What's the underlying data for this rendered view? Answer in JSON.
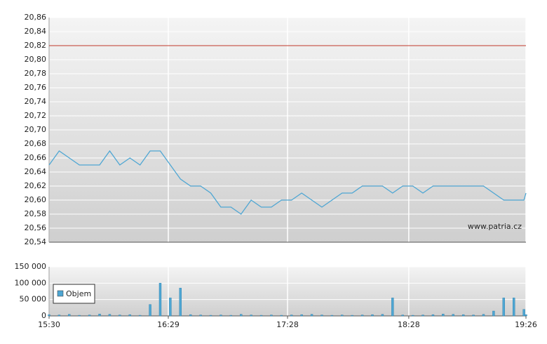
{
  "chart_data": [
    {
      "type": "line",
      "x": [
        "15:30",
        "15:35",
        "15:40",
        "15:45",
        "15:50",
        "15:55",
        "16:00",
        "16:05",
        "16:10",
        "16:15",
        "16:20",
        "16:25",
        "16:30",
        "16:35",
        "16:40",
        "16:45",
        "16:50",
        "16:55",
        "17:00",
        "17:05",
        "17:10",
        "17:15",
        "17:20",
        "17:25",
        "17:30",
        "17:35",
        "17:40",
        "17:45",
        "17:50",
        "17:55",
        "18:00",
        "18:05",
        "18:10",
        "18:15",
        "18:20",
        "18:25",
        "18:30",
        "18:35",
        "18:40",
        "18:45",
        "18:50",
        "18:55",
        "19:00",
        "19:05",
        "19:10",
        "19:15",
        "19:20",
        "19:25",
        "19:26"
      ],
      "values": [
        20.65,
        20.67,
        20.66,
        20.65,
        20.65,
        20.65,
        20.67,
        20.65,
        20.66,
        20.65,
        20.67,
        20.67,
        20.65,
        20.63,
        20.62,
        20.62,
        20.61,
        20.59,
        20.59,
        20.58,
        20.6,
        20.59,
        20.59,
        20.6,
        20.6,
        20.61,
        20.6,
        20.59,
        20.6,
        20.61,
        20.61,
        20.62,
        20.62,
        20.62,
        20.61,
        20.62,
        20.62,
        20.61,
        20.62,
        20.62,
        20.62,
        20.62,
        20.62,
        20.62,
        20.61,
        20.6,
        20.6,
        20.6,
        20.61
      ],
      "color": "#4ea6d3",
      "xlim": [
        "15:30",
        "19:26"
      ],
      "ylim": [
        20.54,
        20.86
      ],
      "yticks": [
        {
          "value": 20.54,
          "label": "20,54"
        },
        {
          "value": 20.56,
          "label": "20,56"
        },
        {
          "value": 20.58,
          "label": "20,58"
        },
        {
          "value": 20.6,
          "label": "20,60"
        },
        {
          "value": 20.62,
          "label": "20,62"
        },
        {
          "value": 20.64,
          "label": "20,64"
        },
        {
          "value": 20.66,
          "label": "20,66"
        },
        {
          "value": 20.68,
          "label": "20,68"
        },
        {
          "value": 20.7,
          "label": "20,70"
        },
        {
          "value": 20.72,
          "label": "20,72"
        },
        {
          "value": 20.74,
          "label": "20,74"
        },
        {
          "value": 20.76,
          "label": "20,76"
        },
        {
          "value": 20.78,
          "label": "20,78"
        },
        {
          "value": 20.8,
          "label": "20,80"
        },
        {
          "value": 20.82,
          "label": "20,82"
        },
        {
          "value": 20.84,
          "label": "20,84"
        },
        {
          "value": 20.86,
          "label": "20,86"
        }
      ],
      "reference_line": 20.82,
      "reference_color": "#c0392b",
      "annotation": "www.patria.cz",
      "grid": true
    },
    {
      "type": "bar",
      "x": [
        "15:30",
        "15:35",
        "15:40",
        "15:45",
        "15:50",
        "15:55",
        "16:00",
        "16:05",
        "16:10",
        "16:15",
        "16:20",
        "16:25",
        "16:30",
        "16:35",
        "16:40",
        "16:45",
        "16:50",
        "16:55",
        "17:00",
        "17:05",
        "17:10",
        "17:15",
        "17:20",
        "17:25",
        "17:30",
        "17:35",
        "17:40",
        "17:45",
        "17:50",
        "17:55",
        "18:00",
        "18:05",
        "18:10",
        "18:15",
        "18:20",
        "18:25",
        "18:30",
        "18:35",
        "18:40",
        "18:45",
        "18:50",
        "18:55",
        "19:00",
        "19:05",
        "19:10",
        "19:15",
        "19:20",
        "19:25",
        "19:26"
      ],
      "series": [
        {
          "name": "Objem",
          "color": "#4ea6d3",
          "values": [
            4000,
            3000,
            5000,
            2000,
            3000,
            6000,
            5000,
            3000,
            4000,
            2000,
            35000,
            100000,
            55000,
            85000,
            4000,
            3000,
            2000,
            3000,
            2000,
            5000,
            3000,
            2000,
            3000,
            2000,
            3000,
            4000,
            5000,
            3000,
            2000,
            3000,
            2000,
            3000,
            4000,
            5000,
            55000,
            3000,
            2000,
            3000,
            4000,
            6000,
            5000,
            4000,
            3000,
            5000,
            15000,
            55000,
            55000,
            20000,
            4000
          ]
        }
      ],
      "xlim": [
        "15:30",
        "19:26"
      ],
      "xticks": [
        "15:30",
        "16:29",
        "17:28",
        "18:28",
        "19:26"
      ],
      "ylim": [
        0,
        150000
      ],
      "yticks": [
        0,
        {
          "value": 50000,
          "label": "50 000"
        },
        {
          "value": 100000,
          "label": "100 000"
        },
        {
          "value": 150000,
          "label": "150 000"
        }
      ],
      "legend": "upper left",
      "grid": true
    }
  ]
}
